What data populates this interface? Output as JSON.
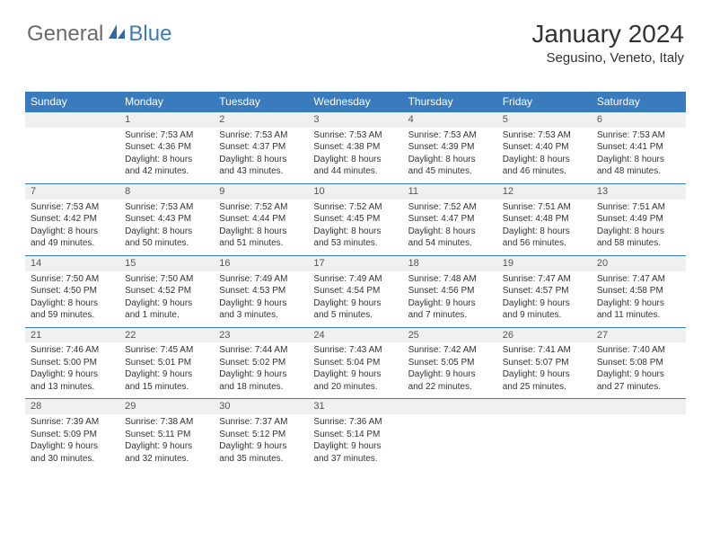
{
  "logo": {
    "part1": "General",
    "part2": "Blue",
    "icon_color": "#2e6aa8"
  },
  "header": {
    "title": "January 2024",
    "location": "Segusino, Veneto, Italy"
  },
  "colors": {
    "header_bg": "#3a7bbd",
    "daynum_bg": "#eef0f1",
    "rule": "#3a7bbd"
  },
  "weekdays": [
    "Sunday",
    "Monday",
    "Tuesday",
    "Wednesday",
    "Thursday",
    "Friday",
    "Saturday"
  ],
  "weeks": [
    [
      null,
      {
        "n": "1",
        "sr": "Sunrise: 7:53 AM",
        "ss": "Sunset: 4:36 PM",
        "d1": "Daylight: 8 hours",
        "d2": "and 42 minutes."
      },
      {
        "n": "2",
        "sr": "Sunrise: 7:53 AM",
        "ss": "Sunset: 4:37 PM",
        "d1": "Daylight: 8 hours",
        "d2": "and 43 minutes."
      },
      {
        "n": "3",
        "sr": "Sunrise: 7:53 AM",
        "ss": "Sunset: 4:38 PM",
        "d1": "Daylight: 8 hours",
        "d2": "and 44 minutes."
      },
      {
        "n": "4",
        "sr": "Sunrise: 7:53 AM",
        "ss": "Sunset: 4:39 PM",
        "d1": "Daylight: 8 hours",
        "d2": "and 45 minutes."
      },
      {
        "n": "5",
        "sr": "Sunrise: 7:53 AM",
        "ss": "Sunset: 4:40 PM",
        "d1": "Daylight: 8 hours",
        "d2": "and 46 minutes."
      },
      {
        "n": "6",
        "sr": "Sunrise: 7:53 AM",
        "ss": "Sunset: 4:41 PM",
        "d1": "Daylight: 8 hours",
        "d2": "and 48 minutes."
      }
    ],
    [
      {
        "n": "7",
        "sr": "Sunrise: 7:53 AM",
        "ss": "Sunset: 4:42 PM",
        "d1": "Daylight: 8 hours",
        "d2": "and 49 minutes."
      },
      {
        "n": "8",
        "sr": "Sunrise: 7:53 AM",
        "ss": "Sunset: 4:43 PM",
        "d1": "Daylight: 8 hours",
        "d2": "and 50 minutes."
      },
      {
        "n": "9",
        "sr": "Sunrise: 7:52 AM",
        "ss": "Sunset: 4:44 PM",
        "d1": "Daylight: 8 hours",
        "d2": "and 51 minutes."
      },
      {
        "n": "10",
        "sr": "Sunrise: 7:52 AM",
        "ss": "Sunset: 4:45 PM",
        "d1": "Daylight: 8 hours",
        "d2": "and 53 minutes."
      },
      {
        "n": "11",
        "sr": "Sunrise: 7:52 AM",
        "ss": "Sunset: 4:47 PM",
        "d1": "Daylight: 8 hours",
        "d2": "and 54 minutes."
      },
      {
        "n": "12",
        "sr": "Sunrise: 7:51 AM",
        "ss": "Sunset: 4:48 PM",
        "d1": "Daylight: 8 hours",
        "d2": "and 56 minutes."
      },
      {
        "n": "13",
        "sr": "Sunrise: 7:51 AM",
        "ss": "Sunset: 4:49 PM",
        "d1": "Daylight: 8 hours",
        "d2": "and 58 minutes."
      }
    ],
    [
      {
        "n": "14",
        "sr": "Sunrise: 7:50 AM",
        "ss": "Sunset: 4:50 PM",
        "d1": "Daylight: 8 hours",
        "d2": "and 59 minutes."
      },
      {
        "n": "15",
        "sr": "Sunrise: 7:50 AM",
        "ss": "Sunset: 4:52 PM",
        "d1": "Daylight: 9 hours",
        "d2": "and 1 minute."
      },
      {
        "n": "16",
        "sr": "Sunrise: 7:49 AM",
        "ss": "Sunset: 4:53 PM",
        "d1": "Daylight: 9 hours",
        "d2": "and 3 minutes."
      },
      {
        "n": "17",
        "sr": "Sunrise: 7:49 AM",
        "ss": "Sunset: 4:54 PM",
        "d1": "Daylight: 9 hours",
        "d2": "and 5 minutes."
      },
      {
        "n": "18",
        "sr": "Sunrise: 7:48 AM",
        "ss": "Sunset: 4:56 PM",
        "d1": "Daylight: 9 hours",
        "d2": "and 7 minutes."
      },
      {
        "n": "19",
        "sr": "Sunrise: 7:47 AM",
        "ss": "Sunset: 4:57 PM",
        "d1": "Daylight: 9 hours",
        "d2": "and 9 minutes."
      },
      {
        "n": "20",
        "sr": "Sunrise: 7:47 AM",
        "ss": "Sunset: 4:58 PM",
        "d1": "Daylight: 9 hours",
        "d2": "and 11 minutes."
      }
    ],
    [
      {
        "n": "21",
        "sr": "Sunrise: 7:46 AM",
        "ss": "Sunset: 5:00 PM",
        "d1": "Daylight: 9 hours",
        "d2": "and 13 minutes."
      },
      {
        "n": "22",
        "sr": "Sunrise: 7:45 AM",
        "ss": "Sunset: 5:01 PM",
        "d1": "Daylight: 9 hours",
        "d2": "and 15 minutes."
      },
      {
        "n": "23",
        "sr": "Sunrise: 7:44 AM",
        "ss": "Sunset: 5:02 PM",
        "d1": "Daylight: 9 hours",
        "d2": "and 18 minutes."
      },
      {
        "n": "24",
        "sr": "Sunrise: 7:43 AM",
        "ss": "Sunset: 5:04 PM",
        "d1": "Daylight: 9 hours",
        "d2": "and 20 minutes."
      },
      {
        "n": "25",
        "sr": "Sunrise: 7:42 AM",
        "ss": "Sunset: 5:05 PM",
        "d1": "Daylight: 9 hours",
        "d2": "and 22 minutes."
      },
      {
        "n": "26",
        "sr": "Sunrise: 7:41 AM",
        "ss": "Sunset: 5:07 PM",
        "d1": "Daylight: 9 hours",
        "d2": "and 25 minutes."
      },
      {
        "n": "27",
        "sr": "Sunrise: 7:40 AM",
        "ss": "Sunset: 5:08 PM",
        "d1": "Daylight: 9 hours",
        "d2": "and 27 minutes."
      }
    ],
    [
      {
        "n": "28",
        "sr": "Sunrise: 7:39 AM",
        "ss": "Sunset: 5:09 PM",
        "d1": "Daylight: 9 hours",
        "d2": "and 30 minutes."
      },
      {
        "n": "29",
        "sr": "Sunrise: 7:38 AM",
        "ss": "Sunset: 5:11 PM",
        "d1": "Daylight: 9 hours",
        "d2": "and 32 minutes."
      },
      {
        "n": "30",
        "sr": "Sunrise: 7:37 AM",
        "ss": "Sunset: 5:12 PM",
        "d1": "Daylight: 9 hours",
        "d2": "and 35 minutes."
      },
      {
        "n": "31",
        "sr": "Sunrise: 7:36 AM",
        "ss": "Sunset: 5:14 PM",
        "d1": "Daylight: 9 hours",
        "d2": "and 37 minutes."
      },
      null,
      null,
      null
    ]
  ]
}
